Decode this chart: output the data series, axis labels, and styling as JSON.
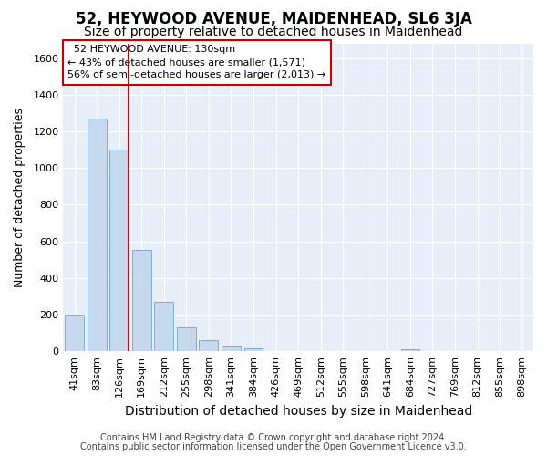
{
  "title": "52, HEYWOOD AVENUE, MAIDENHEAD, SL6 3JA",
  "subtitle": "Size of property relative to detached houses in Maidenhead",
  "xlabel": "Distribution of detached houses by size in Maidenhead",
  "ylabel": "Number of detached properties",
  "footnote1": "Contains HM Land Registry data © Crown copyright and database right 2024.",
  "footnote2": "Contains public sector information licensed under the Open Government Licence v3.0.",
  "categories": [
    "41sqm",
    "83sqm",
    "126sqm",
    "169sqm",
    "212sqm",
    "255sqm",
    "298sqm",
    "341sqm",
    "384sqm",
    "426sqm",
    "469sqm",
    "512sqm",
    "555sqm",
    "598sqm",
    "641sqm",
    "684sqm",
    "727sqm",
    "769sqm",
    "812sqm",
    "855sqm",
    "898sqm"
  ],
  "values": [
    200,
    1270,
    1100,
    555,
    270,
    130,
    60,
    30,
    18,
    0,
    0,
    0,
    0,
    0,
    0,
    13,
    0,
    0,
    0,
    0,
    0
  ],
  "bar_color": "#c5d8ed",
  "bar_edge_color": "#7aafd4",
  "annotation_box_color": "#ffffff",
  "annotation_border_color": "#cc0000",
  "annotation_label": "52 HEYWOOD AVENUE: 130sqm",
  "pct_smaller": 43,
  "count_smaller": 1571,
  "pct_larger": 56,
  "count_larger": 2013,
  "vline_x": 2.42,
  "vline_color": "#cc0000",
  "ylim": [
    0,
    1680
  ],
  "yticks": [
    0,
    200,
    400,
    600,
    800,
    1000,
    1200,
    1400,
    1600
  ],
  "bg_color": "#ffffff",
  "plot_bg_color": "#e8eef7",
  "grid_color": "#ffffff",
  "title_fontsize": 12,
  "subtitle_fontsize": 10,
  "xlabel_fontsize": 10,
  "ylabel_fontsize": 9,
  "tick_fontsize": 8,
  "annotation_fontsize": 8,
  "footnote_fontsize": 7
}
